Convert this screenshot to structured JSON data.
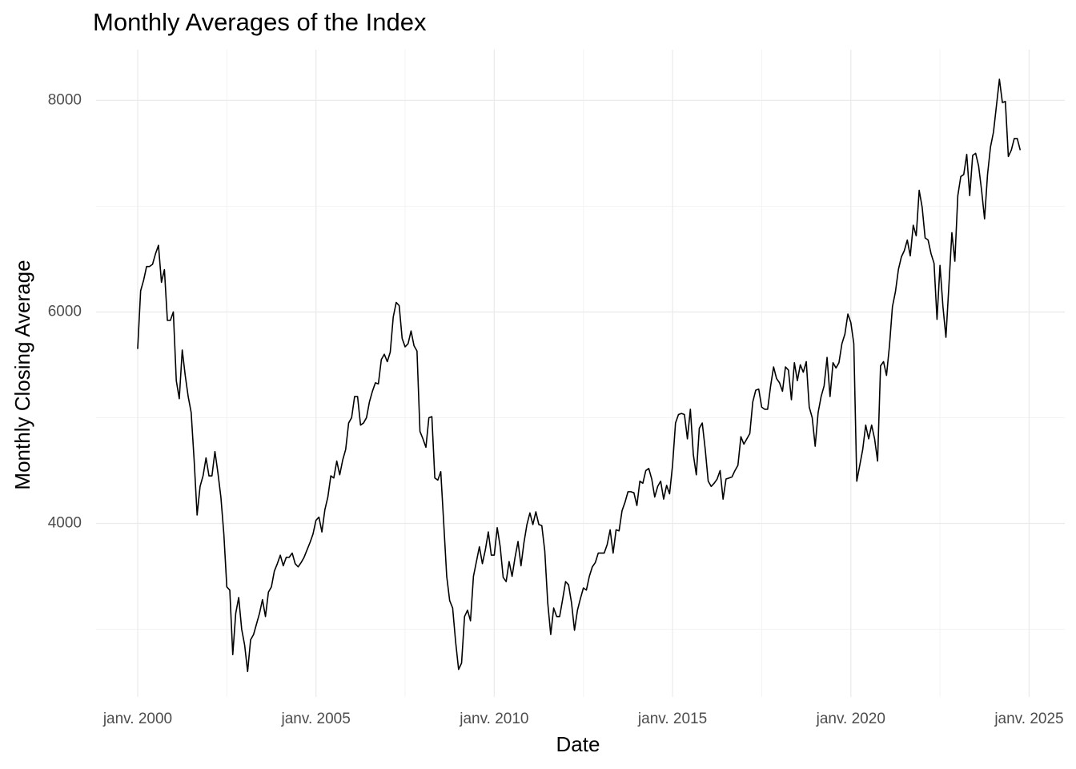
{
  "chart_data": {
    "type": "line",
    "title": "Monthly Averages of the Index",
    "x_label": "Date",
    "y_label": "Monthly Closing Average",
    "x": [
      "2000-01",
      "2000-02",
      "2000-03",
      "2000-04",
      "2000-05",
      "2000-06",
      "2000-07",
      "2000-08",
      "2000-09",
      "2000-10",
      "2000-11",
      "2000-12",
      "2001-01",
      "2001-02",
      "2001-03",
      "2001-04",
      "2001-05",
      "2001-06",
      "2001-07",
      "2001-08",
      "2001-09",
      "2001-10",
      "2001-11",
      "2001-12",
      "2002-01",
      "2002-02",
      "2002-03",
      "2002-04",
      "2002-05",
      "2002-06",
      "2002-07",
      "2002-08",
      "2002-09",
      "2002-10",
      "2002-11",
      "2002-12",
      "2003-01",
      "2003-02",
      "2003-03",
      "2003-04",
      "2003-05",
      "2003-06",
      "2003-07",
      "2003-08",
      "2003-09",
      "2003-10",
      "2003-11",
      "2003-12",
      "2004-01",
      "2004-02",
      "2004-03",
      "2004-04",
      "2004-05",
      "2004-06",
      "2004-07",
      "2004-08",
      "2004-09",
      "2004-10",
      "2004-11",
      "2004-12",
      "2005-01",
      "2005-02",
      "2005-03",
      "2005-04",
      "2005-05",
      "2005-06",
      "2005-07",
      "2005-08",
      "2005-09",
      "2005-10",
      "2005-11",
      "2005-12",
      "2006-01",
      "2006-02",
      "2006-03",
      "2006-04",
      "2006-05",
      "2006-06",
      "2006-07",
      "2006-08",
      "2006-09",
      "2006-10",
      "2006-11",
      "2006-12",
      "2007-01",
      "2007-02",
      "2007-03",
      "2007-04",
      "2007-05",
      "2007-06",
      "2007-07",
      "2007-08",
      "2007-09",
      "2007-10",
      "2007-11",
      "2007-12",
      "2008-01",
      "2008-02",
      "2008-03",
      "2008-04",
      "2008-05",
      "2008-06",
      "2008-07",
      "2008-08",
      "2008-09",
      "2008-10",
      "2008-11",
      "2008-12",
      "2009-01",
      "2009-02",
      "2009-03",
      "2009-04",
      "2009-05",
      "2009-06",
      "2009-07",
      "2009-08",
      "2009-09",
      "2009-10",
      "2009-11",
      "2009-12",
      "2010-01",
      "2010-02",
      "2010-03",
      "2010-04",
      "2010-05",
      "2010-06",
      "2010-07",
      "2010-08",
      "2010-09",
      "2010-10",
      "2010-11",
      "2010-12",
      "2011-01",
      "2011-02",
      "2011-03",
      "2011-04",
      "2011-05",
      "2011-06",
      "2011-07",
      "2011-08",
      "2011-09",
      "2011-10",
      "2011-11",
      "2011-12",
      "2012-01",
      "2012-02",
      "2012-03",
      "2012-04",
      "2012-05",
      "2012-06",
      "2012-07",
      "2012-08",
      "2012-09",
      "2012-10",
      "2012-11",
      "2012-12",
      "2013-01",
      "2013-02",
      "2013-03",
      "2013-04",
      "2013-05",
      "2013-06",
      "2013-07",
      "2013-08",
      "2013-09",
      "2013-10",
      "2013-11",
      "2013-12",
      "2014-01",
      "2014-02",
      "2014-03",
      "2014-04",
      "2014-05",
      "2014-06",
      "2014-07",
      "2014-08",
      "2014-09",
      "2014-10",
      "2014-11",
      "2014-12",
      "2015-01",
      "2015-02",
      "2015-03",
      "2015-04",
      "2015-05",
      "2015-06",
      "2015-07",
      "2015-08",
      "2015-09",
      "2015-10",
      "2015-11",
      "2015-12",
      "2016-01",
      "2016-02",
      "2016-03",
      "2016-04",
      "2016-05",
      "2016-06",
      "2016-07",
      "2016-08",
      "2016-09",
      "2016-10",
      "2016-11",
      "2016-12",
      "2017-01",
      "2017-02",
      "2017-03",
      "2017-04",
      "2017-05",
      "2017-06",
      "2017-07",
      "2017-08",
      "2017-09",
      "2017-10",
      "2017-11",
      "2017-12",
      "2018-01",
      "2018-02",
      "2018-03",
      "2018-04",
      "2018-05",
      "2018-06",
      "2018-07",
      "2018-08",
      "2018-09",
      "2018-10",
      "2018-11",
      "2018-12",
      "2019-01",
      "2019-02",
      "2019-03",
      "2019-04",
      "2019-05",
      "2019-06",
      "2019-07",
      "2019-08",
      "2019-09",
      "2019-10",
      "2019-11",
      "2019-12",
      "2020-01",
      "2020-02",
      "2020-03",
      "2020-04",
      "2020-05",
      "2020-06",
      "2020-07",
      "2020-08",
      "2020-09",
      "2020-10",
      "2020-11",
      "2020-12",
      "2021-01",
      "2021-02",
      "2021-03",
      "2021-04",
      "2021-05",
      "2021-06",
      "2021-07",
      "2021-08",
      "2021-09",
      "2021-10",
      "2021-11",
      "2021-12",
      "2022-01",
      "2022-02",
      "2022-03",
      "2022-04",
      "2022-05",
      "2022-06",
      "2022-07",
      "2022-08",
      "2022-09",
      "2022-10",
      "2022-11",
      "2022-12",
      "2023-01",
      "2023-02",
      "2023-03",
      "2023-04",
      "2023-05",
      "2023-06",
      "2023-07",
      "2023-08",
      "2023-09",
      "2023-10",
      "2023-11",
      "2023-12",
      "2024-01",
      "2024-02",
      "2024-03",
      "2024-04",
      "2024-05",
      "2024-06",
      "2024-07",
      "2024-08",
      "2024-09",
      "2024-10"
    ],
    "values": [
      5650,
      6200,
      6300,
      6430,
      6430,
      6450,
      6550,
      6630,
      6280,
      6400,
      5920,
      5920,
      6000,
      5350,
      5180,
      5640,
      5400,
      5200,
      5050,
      4600,
      4080,
      4350,
      4450,
      4620,
      4450,
      4450,
      4680,
      4480,
      4250,
      3900,
      3400,
      3370,
      2760,
      3150,
      3300,
      3000,
      2850,
      2600,
      2900,
      2950,
      3050,
      3150,
      3280,
      3120,
      3350,
      3400,
      3550,
      3620,
      3700,
      3600,
      3680,
      3680,
      3720,
      3620,
      3590,
      3630,
      3680,
      3750,
      3820,
      3900,
      4030,
      4060,
      3920,
      4130,
      4250,
      4450,
      4430,
      4590,
      4460,
      4600,
      4700,
      4950,
      5000,
      5200,
      5200,
      4930,
      4950,
      5000,
      5150,
      5250,
      5330,
      5320,
      5550,
      5600,
      5530,
      5620,
      5950,
      6090,
      6060,
      5750,
      5670,
      5700,
      5820,
      5680,
      5630,
      4870,
      4800,
      4720,
      5000,
      5010,
      4430,
      4410,
      4490,
      4000,
      3500,
      3270,
      3200,
      2880,
      2620,
      2680,
      3120,
      3180,
      3080,
      3500,
      3640,
      3780,
      3620,
      3750,
      3920,
      3700,
      3700,
      3960,
      3780,
      3490,
      3450,
      3640,
      3500,
      3680,
      3830,
      3600,
      3820,
      3990,
      4100,
      3990,
      4110,
      3990,
      3980,
      3740,
      3250,
      2950,
      3200,
      3120,
      3120,
      3280,
      3450,
      3420,
      3250,
      2990,
      3180,
      3290,
      3390,
      3370,
      3500,
      3590,
      3630,
      3720,
      3720,
      3720,
      3800,
      3940,
      3720,
      3940,
      3930,
      4120,
      4200,
      4300,
      4300,
      4290,
      4170,
      4400,
      4380,
      4500,
      4520,
      4420,
      4250,
      4350,
      4400,
      4230,
      4360,
      4280,
      4550,
      4950,
      5030,
      5040,
      5030,
      4800,
      5080,
      4650,
      4460,
      4900,
      4950,
      4700,
      4400,
      4350,
      4380,
      4420,
      4500,
      4230,
      4420,
      4430,
      4440,
      4500,
      4550,
      4820,
      4750,
      4800,
      4850,
      5150,
      5260,
      5270,
      5100,
      5080,
      5080,
      5300,
      5480,
      5370,
      5330,
      5250,
      5480,
      5450,
      5170,
      5520,
      5350,
      5500,
      5430,
      5530,
      5100,
      5000,
      4730,
      5050,
      5200,
      5300,
      5570,
      5200,
      5520,
      5470,
      5520,
      5700,
      5790,
      5980,
      5900,
      5700,
      4400,
      4550,
      4700,
      4930,
      4800,
      4930,
      4800,
      4590,
      5490,
      5530,
      5400,
      5680,
      6050,
      6190,
      6400,
      6520,
      6580,
      6680,
      6530,
      6820,
      6720,
      7150,
      6990,
      6700,
      6680,
      6550,
      6460,
      5930,
      6440,
      6050,
      5760,
      6250,
      6750,
      6480,
      7100,
      7280,
      7300,
      7490,
      7100,
      7480,
      7500,
      7380,
      7150,
      6880,
      7300,
      7560,
      7700,
      7950,
      8200,
      7980,
      7990,
      7470,
      7530,
      7640,
      7640,
      7530
    ],
    "color": "#000000",
    "xlim": [
      "1998-11",
      "2026-01"
    ],
    "xticks": [
      {
        "value": "2000-01",
        "label": "janv. 2000"
      },
      {
        "value": "2005-01",
        "label": "janv. 2005"
      },
      {
        "value": "2010-01",
        "label": "janv. 2010"
      },
      {
        "value": "2015-01",
        "label": "janv. 2015"
      },
      {
        "value": "2020-01",
        "label": "janv. 2020"
      },
      {
        "value": "2025-01",
        "label": "janv. 2025"
      }
    ],
    "ylim": [
      2360,
      8480
    ],
    "yticks": [
      4000,
      6000,
      8000
    ],
    "grid": true
  }
}
